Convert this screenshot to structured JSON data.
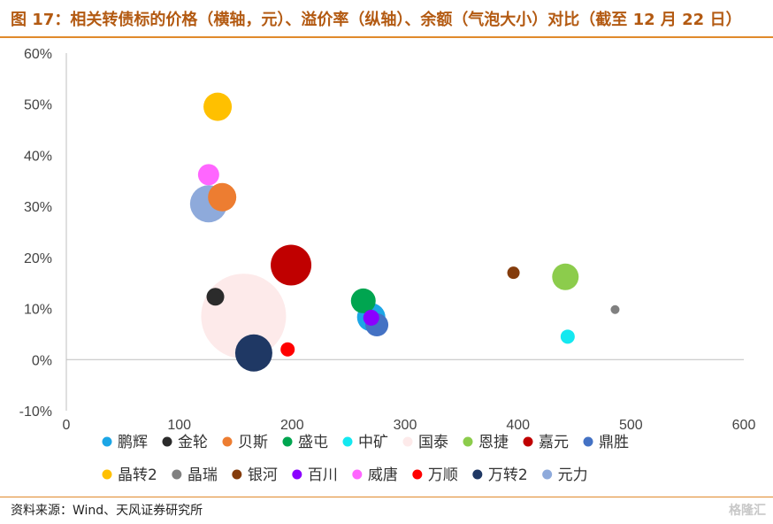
{
  "header": {
    "title": "图 17：相关转债标的价格（横轴，元）、溢价率（纵轴）、余额（气泡大小）对比（截至 12 月 22 日）"
  },
  "footer": {
    "source": "资料来源：Wind、天风证券研究所",
    "watermark": "格隆汇"
  },
  "chart_data": {
    "type": "bubble",
    "title": "",
    "xlabel": "",
    "ylabel": "",
    "xlim": [
      0,
      600
    ],
    "ylim": [
      -0.1,
      0.6
    ],
    "x_ticks": [
      0,
      100,
      200,
      300,
      400,
      500,
      600
    ],
    "y_ticks": [
      -0.1,
      0,
      0.1,
      0.2,
      0.3,
      0.4,
      0.5,
      0.6
    ],
    "x_tick_labels": [
      "0",
      "100",
      "200",
      "300",
      "400",
      "500",
      "600"
    ],
    "y_tick_labels": [
      "-10%",
      "0%",
      "10%",
      "20%",
      "30%",
      "40%",
      "50%",
      "60%"
    ],
    "grid": false,
    "legend_position": "bottom",
    "series": [
      {
        "name": "鹏辉",
        "color": "#1ca6e6",
        "x": 270,
        "y": 0.083,
        "size": 16
      },
      {
        "name": "金轮",
        "color": "#2b2b2b",
        "x": 132,
        "y": 0.123,
        "size": 10
      },
      {
        "name": "贝斯",
        "color": "#ed7d31",
        "x": 138,
        "y": 0.318,
        "size": 16
      },
      {
        "name": "盛屯",
        "color": "#00a550",
        "x": 263,
        "y": 0.115,
        "size": 14
      },
      {
        "name": "中矿",
        "color": "#14e8f0",
        "x": 444,
        "y": 0.045,
        "size": 8
      },
      {
        "name": "国泰",
        "color": "#fdeaea",
        "x": 157,
        "y": 0.085,
        "size": 48
      },
      {
        "name": "恩捷",
        "color": "#8ccc4c",
        "x": 442,
        "y": 0.162,
        "size": 15
      },
      {
        "name": "嘉元",
        "color": "#c00000",
        "x": 199,
        "y": 0.185,
        "size": 23
      },
      {
        "name": "鼎胜",
        "color": "#4472c4",
        "x": 275,
        "y": 0.068,
        "size": 13
      },
      {
        "name": "晶转2",
        "color": "#ffc000",
        "x": 134,
        "y": 0.495,
        "size": 16
      },
      {
        "name": "晶瑞",
        "color": "#808080",
        "x": 486,
        "y": 0.098,
        "size": 5
      },
      {
        "name": "银河",
        "color": "#843c0c",
        "x": 396,
        "y": 0.17,
        "size": 7
      },
      {
        "name": "百川",
        "color": "#8b00ff",
        "x": 270,
        "y": 0.082,
        "size": 9
      },
      {
        "name": "威唐",
        "color": "#ff66ff",
        "x": 126,
        "y": 0.362,
        "size": 12
      },
      {
        "name": "万顺",
        "color": "#ff0000",
        "x": 196,
        "y": 0.02,
        "size": 8
      },
      {
        "name": "万转2",
        "color": "#1f3864",
        "x": 166,
        "y": 0.013,
        "size": 21
      },
      {
        "name": "元力",
        "color": "#8eaadb",
        "x": 126,
        "y": 0.305,
        "size": 21
      }
    ]
  }
}
